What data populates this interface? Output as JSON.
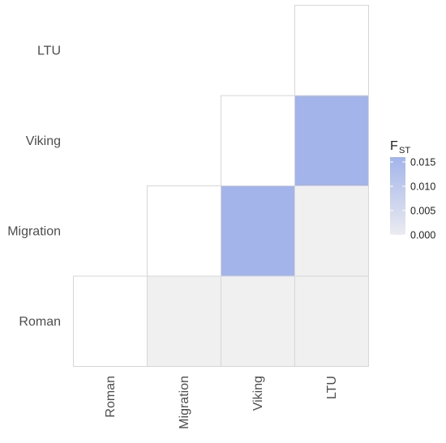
{
  "chart_data": {
    "type": "heatmap",
    "categories": [
      "Roman",
      "Migration",
      "Viking",
      "LTU"
    ],
    "value_label": "FST",
    "legend": {
      "title_main": "F",
      "title_sub": "ST",
      "ticks": [
        "0.000",
        "0.005",
        "0.010",
        "0.015"
      ],
      "range": [
        0,
        0.016
      ],
      "low_color": "#ebebf0",
      "high_color": "#a2b4ea"
    },
    "cells": [
      {
        "x": "Roman",
        "y": "Roman",
        "value": null
      },
      {
        "x": "Migration",
        "y": "Migration",
        "value": null
      },
      {
        "x": "Viking",
        "y": "Viking",
        "value": null
      },
      {
        "x": "LTU",
        "y": "LTU",
        "value": null
      },
      {
        "x": "Migration",
        "y": "Roman",
        "value": 0.0
      },
      {
        "x": "Viking",
        "y": "Roman",
        "value": 0.0
      },
      {
        "x": "LTU",
        "y": "Roman",
        "value": 0.0
      },
      {
        "x": "Viking",
        "y": "Migration",
        "value": 0.016
      },
      {
        "x": "LTU",
        "y": "Migration",
        "value": 0.0
      },
      {
        "x": "LTU",
        "y": "Viking",
        "value": 0.016
      }
    ],
    "colors": {
      "diagonal": "#ffffff",
      "zero": "#f0f0f0",
      "border": "#d6d6d6"
    },
    "legend_position": "right"
  }
}
